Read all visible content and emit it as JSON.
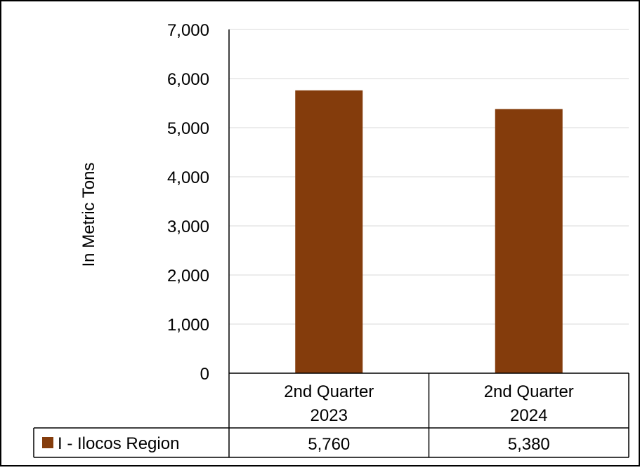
{
  "chart_data": {
    "type": "bar",
    "title": "",
    "xlabel": "",
    "ylabel": "In Metric Tons",
    "ylim": [
      0,
      7000
    ],
    "ytick_values": [
      0,
      1000,
      2000,
      3000,
      4000,
      5000,
      6000,
      7000
    ],
    "ytick_labels": [
      "0",
      "1,000",
      "2,000",
      "3,000",
      "4,000",
      "5,000",
      "6,000",
      "7,000"
    ],
    "grid": true,
    "legend_placement": "data-table",
    "categories": [
      [
        "2nd Quarter",
        "2023"
      ],
      [
        "2nd Quarter",
        "2024"
      ]
    ],
    "series": [
      {
        "name": "I - Ilocos Region",
        "color": "#843C0C",
        "values": [
          5760,
          5380
        ],
        "value_labels": [
          "5,760",
          "5,380"
        ]
      }
    ]
  }
}
